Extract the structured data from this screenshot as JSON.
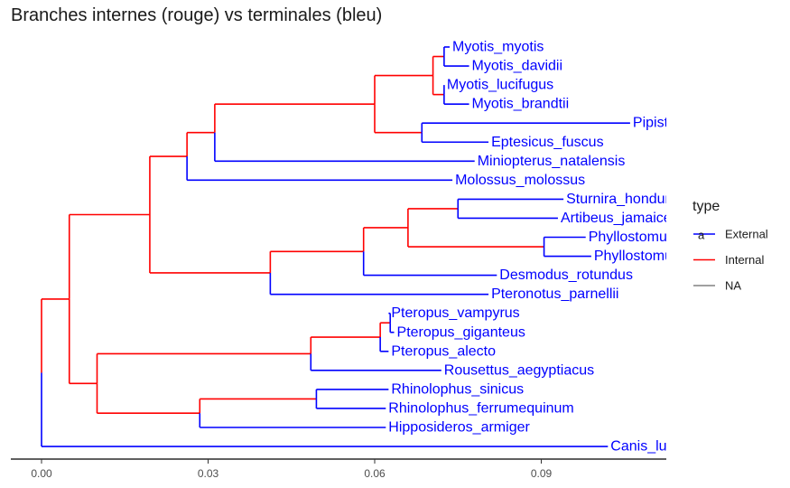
{
  "chart_data": {
    "type": "phylogenetic-tree",
    "title": "Branches internes (rouge) vs terminales (bleu)",
    "xlim": [
      -0.005,
      0.1125
    ],
    "x_ticks": [
      0.0,
      0.03,
      0.06,
      0.09
    ],
    "x_tick_labels": [
      "0.00",
      "0.03",
      "0.06",
      "0.09"
    ],
    "grid": false,
    "colors": {
      "External": "#0000ff",
      "Internal": "#ff0000",
      "NA": "#808080",
      "axis": "#000000"
    },
    "tips": [
      {
        "label": "Myotis_myotis",
        "x": 0.0735,
        "row": 1
      },
      {
        "label": "Myotis_davidii",
        "x": 0.077,
        "row": 2
      },
      {
        "label": "Myotis_lucifugus",
        "x": 0.0725,
        "row": 3
      },
      {
        "label": "Myotis_brandtii",
        "x": 0.077,
        "row": 4
      },
      {
        "label": "Pipistrellus_kuhlii",
        "x": 0.106,
        "row": 5
      },
      {
        "label": "Eptesicus_fuscus",
        "x": 0.0805,
        "row": 6
      },
      {
        "label": "Miniopterus_natalensis",
        "x": 0.078,
        "row": 7
      },
      {
        "label": "Molossus_molossus",
        "x": 0.074,
        "row": 8
      },
      {
        "label": "Sturnira_hondurensis",
        "x": 0.094,
        "row": 9
      },
      {
        "label": "Artibeus_jamaicensis",
        "x": 0.093,
        "row": 10
      },
      {
        "label": "Phyllostomus_discolor",
        "x": 0.098,
        "row": 11
      },
      {
        "label": "Phyllostomus_hastatus",
        "x": 0.099,
        "row": 12
      },
      {
        "label": "Desmodus_rotundus",
        "x": 0.082,
        "row": 13
      },
      {
        "label": "Pteronotus_parnellii",
        "x": 0.0805,
        "row": 14
      },
      {
        "label": "Pteropus_vampyrus",
        "x": 0.0625,
        "row": 15
      },
      {
        "label": "Pteropus_giganteus",
        "x": 0.0635,
        "row": 16
      },
      {
        "label": "Pteropus_alecto",
        "x": 0.0625,
        "row": 17
      },
      {
        "label": "Rousettus_aegyptiacus",
        "x": 0.072,
        "row": 18
      },
      {
        "label": "Rhinolophus_sinicus",
        "x": 0.0625,
        "row": 19
      },
      {
        "label": "Rhinolophus_ferrumequinum",
        "x": 0.062,
        "row": 20
      },
      {
        "label": "Hipposideros_armiger",
        "x": 0.062,
        "row": 21
      },
      {
        "label": "Canis_lupus",
        "x": 0.102,
        "row": 22
      }
    ],
    "nodes": [
      {
        "id": "root",
        "x": 0.0,
        "children": [
          "bats",
          "Canis_lupus"
        ]
      },
      {
        "id": "bats",
        "x": 0.005,
        "children": [
          "yango",
          "yinpt"
        ]
      },
      {
        "id": "yango",
        "x": 0.0195,
        "children": [
          "n_mol",
          "n_noct"
        ]
      },
      {
        "id": "n_mol",
        "x": 0.0262,
        "children": [
          "n_mini",
          "Molossus_molossus"
        ]
      },
      {
        "id": "n_mini",
        "x": 0.0312,
        "children": [
          "vesp",
          "Miniopterus_natalensis"
        ]
      },
      {
        "id": "vesp",
        "x": 0.06,
        "children": [
          "myotis",
          "n_pip"
        ]
      },
      {
        "id": "myotis",
        "x": 0.0705,
        "children": [
          "m_md",
          "m_lb"
        ]
      },
      {
        "id": "m_md",
        "x": 0.0725,
        "children": [
          "Myotis_myotis",
          "Myotis_davidii"
        ]
      },
      {
        "id": "m_lb",
        "x": 0.0725,
        "children": [
          "Myotis_lucifugus",
          "Myotis_brandtii"
        ]
      },
      {
        "id": "n_pip",
        "x": 0.0685,
        "children": [
          "Pipistrellus_kuhlii",
          "Eptesicus_fuscus"
        ]
      },
      {
        "id": "n_noct",
        "x": 0.0412,
        "children": [
          "phyllo",
          "Pteronotus_parnellii"
        ]
      },
      {
        "id": "phyllo",
        "x": 0.058,
        "children": [
          "ph_inner",
          "Desmodus_rotundus"
        ]
      },
      {
        "id": "ph_inner",
        "x": 0.066,
        "children": [
          "stenod",
          "phyllost"
        ]
      },
      {
        "id": "stenod",
        "x": 0.075,
        "children": [
          "Sturnira_hondurensis",
          "Artibeus_jamaicensis"
        ]
      },
      {
        "id": "phyllost",
        "x": 0.0905,
        "children": [
          "Phyllostomus_discolor",
          "Phyllostomus_hastatus"
        ]
      },
      {
        "id": "yinpt",
        "x": 0.01,
        "children": [
          "pter",
          "rhino"
        ]
      },
      {
        "id": "pter",
        "x": 0.0485,
        "children": [
          "pterop",
          "Rousettus_aegyptiacus"
        ]
      },
      {
        "id": "pterop",
        "x": 0.061,
        "children": [
          "ptvg",
          "Pteropus_alecto"
        ]
      },
      {
        "id": "ptvg",
        "x": 0.0628,
        "children": [
          "Pteropus_vampyrus",
          "Pteropus_giganteus"
        ]
      },
      {
        "id": "rhino",
        "x": 0.0285,
        "children": [
          "rhinoI",
          "Hipposideros_armiger"
        ]
      },
      {
        "id": "rhinoI",
        "x": 0.0495,
        "children": [
          "Rhinolophus_sinicus",
          "Rhinolophus_ferrumequinum"
        ]
      }
    ],
    "legend": {
      "title": "type",
      "position": "right",
      "entries": [
        {
          "name": "External",
          "key_glyph": "a",
          "color": "#0000ff"
        },
        {
          "name": "Internal",
          "color": "#ff0000"
        },
        {
          "name": "NA",
          "color": "#808080"
        }
      ]
    }
  }
}
